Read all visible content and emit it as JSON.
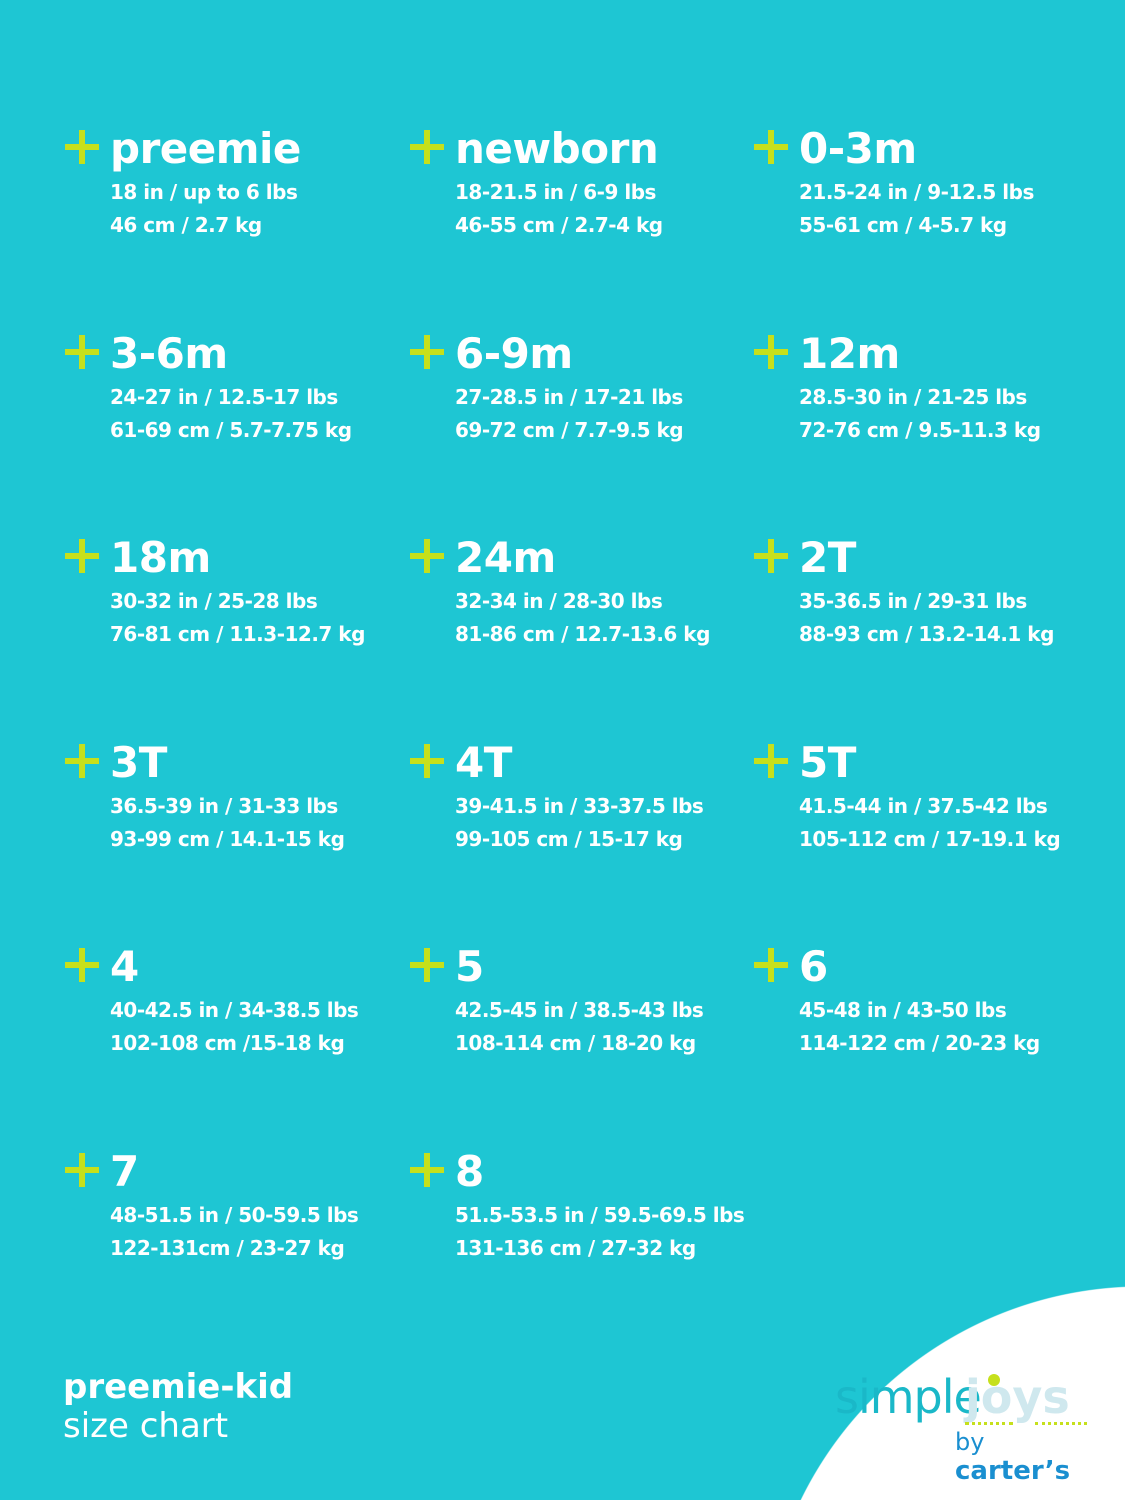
{
  "colors": {
    "background": "#1ec6d3",
    "accent": "#c6e01c",
    "text": "#ffffff"
  },
  "sizes": [
    {
      "name": "preemie",
      "line1": "18 in / up to 6 lbs",
      "line2": "46 cm / 2.7 kg"
    },
    {
      "name": "newborn",
      "line1": "18-21.5 in / 6-9 lbs",
      "line2": "46-55 cm / 2.7-4 kg"
    },
    {
      "name": "0-3m",
      "line1": "21.5-24 in / 9-12.5 lbs",
      "line2": "55-61 cm / 4-5.7  kg"
    },
    {
      "name": "3-6m",
      "line1": "24-27 in / 12.5-17 lbs",
      "line2": "61-69 cm / 5.7-7.75 kg"
    },
    {
      "name": "6-9m",
      "line1": "27-28.5 in / 17-21 lbs",
      "line2": "69-72 cm / 7.7-9.5 kg"
    },
    {
      "name": "12m",
      "line1": "28.5-30 in / 21-25 lbs",
      "line2": "72-76 cm / 9.5-11.3 kg"
    },
    {
      "name": "18m",
      "line1": "30-32 in / 25-28 lbs",
      "line2": "76-81 cm / 11.3-12.7 kg"
    },
    {
      "name": "24m",
      "line1": "32-34 in / 28-30 lbs",
      "line2": "81-86 cm / 12.7-13.6 kg"
    },
    {
      "name": "2T",
      "line1": "35-36.5 in / 29-31 lbs",
      "line2": "88-93 cm / 13.2-14.1 kg"
    },
    {
      "name": "3T",
      "line1": "36.5-39 in / 31-33 lbs",
      "line2": "93-99 cm / 14.1-15 kg"
    },
    {
      "name": "4T",
      "line1": "39-41.5 in / 33-37.5 lbs",
      "line2": "99-105 cm / 15-17 kg"
    },
    {
      "name": "5T",
      "line1": "41.5-44 in / 37.5-42 lbs",
      "line2": "105-112 cm / 17-19.1 kg"
    },
    {
      "name": "4",
      "line1": "40-42.5 in / 34-38.5 lbs",
      "line2": "102-108 cm /15-18 kg"
    },
    {
      "name": "5",
      "line1": "42.5-45 in / 38.5-43 lbs",
      "line2": "108-114 cm / 18-20 kg"
    },
    {
      "name": "6",
      "line1": "45-48 in / 43-50 lbs",
      "line2": "114-122 cm / 20-23 kg"
    },
    {
      "name": "7",
      "line1": "48-51.5 in / 50-59.5 lbs",
      "line2": "122-131cm / 23-27 kg"
    },
    {
      "name": "8",
      "line1": "51.5-53.5 in / 59.5-69.5 lbs",
      "line2": "131-136 cm / 27-32 kg"
    }
  ],
  "title": {
    "line1": "preemie-kid",
    "line2": "size chart"
  },
  "logo": {
    "brand": "simple joys",
    "by": "by carter's"
  }
}
